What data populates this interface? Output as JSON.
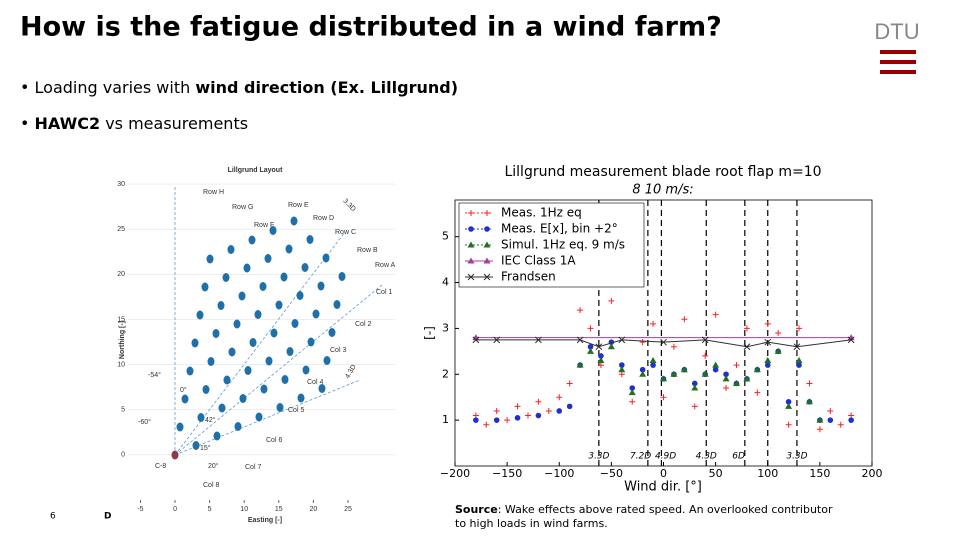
{
  "title": "How is the fatigue distributed in a wind farm?",
  "logo": "DTU",
  "bullets": [
    {
      "plain": "Loading varies with ",
      "bold": "wind direction (Ex. Lillgrund)"
    },
    {
      "bold": "HAWC2",
      "plain": " vs measurements"
    }
  ],
  "page_number": "6",
  "footer_text": "D",
  "source": {
    "label": "Source",
    "text_line1": ": Wake effects above rated speed. An overlooked contributor",
    "text_line2": "to high loads in wind farms."
  },
  "layout_plot": {
    "title": "Lillgrund Layout",
    "xlabel": "Easting [-]",
    "ylabel": "Northing [-]",
    "xlim": [
      -6.8,
      31.8
    ],
    "ylim": [
      -5,
      31
    ],
    "xticks": [
      -5,
      0,
      5,
      10,
      15,
      20,
      25
    ],
    "yticks": [
      0,
      5,
      10,
      15,
      20,
      25,
      30
    ],
    "row_labels": [
      "Row H",
      "Row G",
      "Row F",
      "Row E",
      "Row D",
      "Row C",
      "Row B",
      "Row A"
    ],
    "col_labels": [
      "Col 1",
      "Col 2",
      "Col 3",
      "Col 4",
      "Col 5",
      "Col 6",
      "Col 7",
      "Col 8",
      "C-8"
    ],
    "annotations": [
      "3.3D",
      "4.3D",
      "-54°",
      "-60°",
      "0°",
      "42°",
      "15°",
      "20°"
    ]
  },
  "chart_data": {
    "type": "scatter",
    "title": "Lillgrund measurement blade root flap m=10",
    "subtitle": "8  10 m/s:",
    "xlabel": "Wind dir. [°]",
    "ylabel": "[-]",
    "xlim": [
      -200,
      200
    ],
    "ylim": [
      0,
      5.8
    ],
    "xticks": [
      {
        "value": -200,
        "label": "−200"
      },
      {
        "value": -150,
        "label": "−150"
      },
      {
        "value": -100,
        "label": "−100"
      },
      {
        "value": -50,
        "label": "−50"
      },
      0,
      50,
      100,
      150,
      200
    ],
    "yticks": [
      1,
      2,
      3,
      4,
      5
    ],
    "legend": "upper left",
    "wake_lines": [
      -62,
      -15,
      -2,
      41,
      78,
      100,
      128
    ],
    "wake_labels": [
      {
        "x": -62,
        "label": "3.3D"
      },
      {
        "x": -22,
        "label": "7.2D"
      },
      {
        "x": 2,
        "label": "4.9D"
      },
      {
        "x": 41,
        "label": "4.3D"
      },
      {
        "x": 72,
        "label": "6D"
      },
      {
        "x": 128,
        "label": "3.3D"
      }
    ],
    "series": [
      {
        "name": "Meas. 1Hz eq",
        "color": "#ff2020",
        "marker": "+",
        "x": [
          -180,
          -170,
          -160,
          -150,
          -140,
          -130,
          -120,
          -110,
          -100,
          -90,
          -80,
          -70,
          -60,
          -50,
          -40,
          -30,
          -20,
          -10,
          0,
          10,
          20,
          30,
          40,
          50,
          60,
          70,
          80,
          90,
          100,
          110,
          120,
          130,
          140,
          150,
          160,
          170,
          180
        ],
        "values": [
          1.1,
          0.9,
          1.2,
          1.0,
          1.3,
          1.1,
          1.4,
          1.2,
          1.5,
          1.8,
          3.4,
          3.0,
          2.2,
          3.6,
          2.0,
          1.4,
          2.7,
          3.1,
          1.5,
          2.6,
          3.2,
          1.3,
          2.4,
          3.3,
          1.7,
          2.2,
          3.0,
          1.6,
          3.1,
          2.9,
          0.9,
          3.0,
          1.8,
          0.8,
          1.2,
          0.9,
          1.1
        ]
      },
      {
        "name": "Meas. E[x], bin +2°",
        "color": "#2030d0",
        "marker": "o",
        "x": [
          -180,
          -160,
          -140,
          -120,
          -100,
          -90,
          -80,
          -70,
          -60,
          -50,
          -40,
          -30,
          -20,
          -10,
          0,
          10,
          20,
          30,
          40,
          50,
          60,
          70,
          80,
          90,
          100,
          110,
          120,
          130,
          140,
          150,
          160,
          180
        ],
        "values": [
          1.0,
          1.0,
          1.05,
          1.1,
          1.2,
          1.3,
          2.2,
          2.6,
          2.4,
          2.7,
          2.2,
          1.7,
          2.1,
          2.2,
          1.9,
          2.0,
          2.1,
          1.8,
          2.0,
          2.1,
          2.0,
          1.8,
          1.9,
          2.1,
          2.2,
          2.5,
          1.4,
          2.2,
          1.4,
          1.0,
          1.0,
          1.0
        ]
      },
      {
        "name": "Simul. 1Hz eq. 9 m/s",
        "color": "#207020",
        "marker": "^",
        "x": [
          -80,
          -70,
          -60,
          -50,
          -40,
          -30,
          -20,
          -10,
          0,
          10,
          20,
          30,
          40,
          50,
          60,
          70,
          80,
          90,
          100,
          110,
          120,
          130,
          140,
          150
        ],
        "values": [
          2.2,
          2.5,
          2.3,
          2.6,
          2.1,
          1.6,
          2.0,
          2.3,
          1.9,
          2.0,
          2.1,
          1.7,
          2.0,
          2.2,
          1.9,
          1.8,
          1.9,
          2.1,
          2.3,
          2.5,
          1.3,
          2.3,
          1.4,
          1.0
        ]
      },
      {
        "name": "IEC Class 1A",
        "color": "#a040a0",
        "marker": "^",
        "linestyle": "-",
        "x": [
          -180,
          180
        ],
        "values": [
          2.8,
          2.8
        ]
      },
      {
        "name": "Frandsen",
        "color": "#303030",
        "marker": "x",
        "linestyle": "-",
        "x": [
          -180,
          -160,
          -120,
          -80,
          -62,
          -40,
          0,
          40,
          80,
          100,
          128,
          180
        ],
        "values": [
          2.75,
          2.75,
          2.75,
          2.75,
          2.6,
          2.75,
          2.7,
          2.75,
          2.6,
          2.7,
          2.6,
          2.75
        ]
      }
    ]
  }
}
